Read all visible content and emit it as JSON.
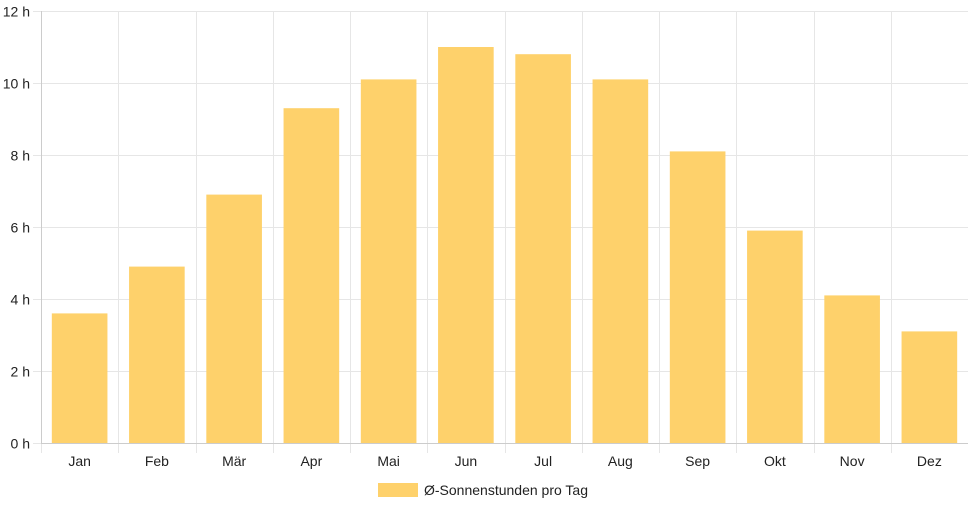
{
  "chart_data": {
    "type": "bar",
    "categories": [
      "Jan",
      "Feb",
      "Mär",
      "Apr",
      "Mai",
      "Jun",
      "Jul",
      "Aug",
      "Sep",
      "Okt",
      "Nov",
      "Dez"
    ],
    "series": [
      {
        "name": "Ø-Sonnenstunden pro Tag",
        "values": [
          3.6,
          4.9,
          6.9,
          9.3,
          10.1,
          11.0,
          10.8,
          10.1,
          8.1,
          5.9,
          4.1,
          3.1
        ]
      }
    ],
    "yticks": [
      "0 h",
      "2 h",
      "4 h",
      "6 h",
      "8 h",
      "10 h",
      "12 h"
    ],
    "ylim": [
      0,
      12
    ],
    "ystep": 2,
    "grid": true,
    "legend_position": "bottom",
    "colors": {
      "bar": "#fed16b",
      "grid": "#e6e6e6",
      "axis": "#cccccc",
      "text": "#222222"
    }
  }
}
